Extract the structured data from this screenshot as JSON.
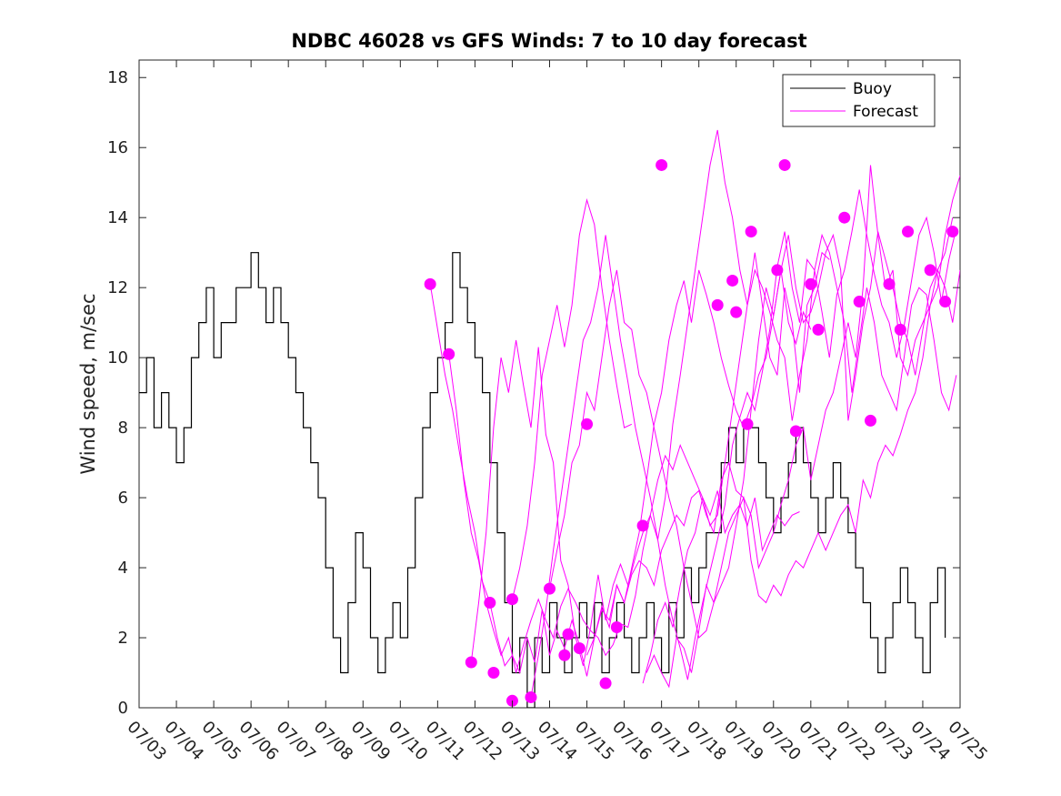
{
  "chart_data": {
    "type": "line",
    "title": "NDBC 46028 vs GFS Winds: 7 to 10 day forecast",
    "xlabel": "",
    "ylabel": "Wind speed, m/sec",
    "xlim": [
      0,
      22
    ],
    "ylim": [
      0,
      18.5
    ],
    "x_tick_labels": [
      "07/03",
      "07/04",
      "07/05",
      "07/06",
      "07/07",
      "07/08",
      "07/09",
      "07/10",
      "07/11",
      "07/12",
      "07/13",
      "07/14",
      "07/15",
      "07/16",
      "07/17",
      "07/18",
      "07/19",
      "07/20",
      "07/21",
      "07/22",
      "07/23",
      "07/24",
      "07/25"
    ],
    "y_tick_labels": [
      "0",
      "2",
      "4",
      "6",
      "8",
      "10",
      "12",
      "14",
      "16",
      "18"
    ],
    "y_ticks": [
      0,
      2,
      4,
      6,
      8,
      10,
      12,
      14,
      16,
      18
    ],
    "x_units": "days since 07/03",
    "legend": {
      "placement": "top-right",
      "entries": [
        "Buoy",
        "Forecast"
      ]
    },
    "colors": {
      "buoy": "#000000",
      "forecast": "#ff00ff"
    },
    "buoy": {
      "name": "Buoy",
      "x": [
        0.0,
        0.2,
        0.4,
        0.6,
        0.8,
        1.0,
        1.2,
        1.4,
        1.6,
        1.8,
        2.0,
        2.2,
        2.4,
        2.6,
        2.8,
        3.0,
        3.2,
        3.4,
        3.6,
        3.8,
        4.0,
        4.2,
        4.4,
        4.6,
        4.8,
        5.0,
        5.2,
        5.4,
        5.6,
        5.8,
        6.0,
        6.2,
        6.4,
        6.6,
        6.8,
        7.0,
        7.2,
        7.4,
        7.6,
        7.8,
        8.0,
        8.2,
        8.4,
        8.6,
        8.8,
        9.0,
        9.2,
        9.4,
        9.6,
        9.8,
        10.0,
        10.2,
        10.4,
        10.6,
        10.8,
        11.0,
        11.2,
        11.4,
        11.6,
        11.8,
        12.0,
        12.2,
        12.4,
        12.6,
        12.8,
        13.0,
        13.2,
        13.4,
        13.6,
        13.8,
        14.0,
        14.2,
        14.4,
        14.6,
        14.8,
        15.0,
        15.2,
        15.4,
        15.6,
        15.8,
        16.0,
        16.2,
        16.4,
        16.6,
        16.8,
        17.0,
        17.2,
        17.4,
        17.6,
        17.8,
        18.0,
        18.2,
        18.4,
        18.6,
        18.8,
        19.0,
        19.2,
        19.4,
        19.6,
        19.8,
        20.0,
        20.2,
        20.4,
        20.6,
        20.8,
        21.0,
        21.2,
        21.4,
        21.6
      ],
      "y": [
        9,
        10,
        8,
        9,
        8,
        7,
        8,
        10,
        11,
        12,
        10,
        11,
        11,
        12,
        12,
        13,
        12,
        11,
        12,
        11,
        10,
        9,
        8,
        7,
        6,
        4,
        2,
        1,
        3,
        5,
        4,
        2,
        1,
        2,
        3,
        2,
        4,
        6,
        8,
        9,
        10,
        11,
        13,
        12,
        11,
        10,
        9,
        7,
        5,
        3,
        1,
        2,
        0,
        2,
        1,
        3,
        2,
        1,
        2,
        3,
        2,
        3,
        1,
        2,
        3,
        2,
        1,
        2,
        3,
        2,
        1,
        3,
        2,
        4,
        3,
        4,
        5,
        5,
        7,
        8,
        7,
        8,
        8,
        7,
        6,
        5,
        6,
        7,
        8,
        7,
        6,
        5,
        6,
        7,
        6,
        5,
        4,
        3,
        2,
        1,
        2,
        3,
        4,
        3,
        2,
        1,
        3,
        4,
        2
      ]
    },
    "forecast_series": [
      {
        "x": [
          7.8,
          8.0,
          8.2,
          8.4,
          8.6,
          8.8,
          9.0,
          9.2,
          9.4,
          9.6,
          9.8,
          10.0,
          10.2,
          10.4,
          10.6,
          10.8,
          11.0,
          11.2,
          11.4,
          11.6,
          11.8,
          12.0,
          12.2,
          12.4,
          12.6,
          12.8,
          13.0,
          13.2,
          13.4,
          13.6,
          13.8,
          14.0,
          14.2,
          14.4,
          14.6,
          14.8,
          15.0,
          15.2,
          15.4,
          15.6,
          15.8,
          16.0,
          16.2,
          16.4,
          16.6,
          16.8,
          17.0,
          17.2,
          17.4,
          17.6,
          17.8,
          18.0
        ],
        "y": [
          12.1,
          10.8,
          9.5,
          8.5,
          7.2,
          6.0,
          5.0,
          3.6,
          3.0,
          2.0,
          1.2,
          1.5,
          1.0,
          2.0,
          1.3,
          2.8,
          1.5,
          2.2,
          1.7,
          2.5,
          1.8,
          0.9,
          2.0,
          2.9,
          2.3,
          3.5,
          3.0,
          4.0,
          5.0,
          6.5,
          8.1,
          9.0,
          10.5,
          11.5,
          12.2,
          11.0,
          12.5,
          11.8,
          11.0,
          10.0,
          9.2,
          8.5,
          8.0,
          8.6,
          9.5,
          10.0,
          11.2,
          12.5,
          11.0,
          10.4,
          11.3,
          10.8
        ]
      },
      {
        "x": [
          8.3,
          8.5,
          8.7,
          8.9,
          9.1,
          9.3,
          9.5,
          9.7,
          9.9,
          10.1,
          10.3,
          10.5,
          10.7,
          10.9,
          11.1,
          11.3,
          11.5,
          11.7,
          11.9,
          12.1,
          12.3,
          12.5,
          12.7,
          12.9,
          13.1,
          13.3,
          13.5,
          13.7,
          13.9,
          14.1,
          14.3,
          14.5,
          14.7,
          14.9,
          15.1,
          15.3,
          15.5,
          15.7,
          15.9,
          16.1,
          16.3,
          16.5,
          16.7,
          16.9,
          17.1,
          17.3,
          17.5,
          17.7
        ],
        "y": [
          10.1,
          8.5,
          6.5,
          5.0,
          4.2,
          3.0,
          2.2,
          1.5,
          2.0,
          1.0,
          1.8,
          2.5,
          3.1,
          2.5,
          2.0,
          2.9,
          3.4,
          3.0,
          2.5,
          2.2,
          2.0,
          1.5,
          1.8,
          2.4,
          2.3,
          3.2,
          4.5,
          5.5,
          6.5,
          7.2,
          6.8,
          7.5,
          7.0,
          6.5,
          6.0,
          5.5,
          6.2,
          5.0,
          5.5,
          5.8,
          5.2,
          6.0,
          4.5,
          5.0,
          5.5,
          5.2,
          5.5,
          5.6
        ]
      },
      {
        "x": [
          8.9,
          9.1,
          9.3,
          9.5,
          9.7,
          9.9,
          10.1,
          10.3,
          10.5,
          10.7,
          10.9,
          11.1,
          11.3,
          11.5,
          11.7,
          11.9,
          12.1,
          12.3,
          12.5,
          12.7,
          12.9,
          13.1,
          13.3,
          13.5,
          13.7,
          13.9,
          14.1,
          14.3,
          14.5,
          14.7,
          14.9,
          15.1,
          15.3,
          15.5,
          15.7,
          15.9,
          16.1,
          16.3,
          16.5,
          16.7,
          16.9,
          17.1,
          17.3,
          17.5,
          17.7,
          17.9,
          18.1,
          18.3,
          18.5
        ],
        "y": [
          1.3,
          3.0,
          5.0,
          8.0,
          10.0,
          9.0,
          10.5,
          9.2,
          8.0,
          10.3,
          7.8,
          7.0,
          4.2,
          3.5,
          2.0,
          1.2,
          2.3,
          3.8,
          2.5,
          3.5,
          4.1,
          3.5,
          4.3,
          5.0,
          5.5,
          4.8,
          6.0,
          8.1,
          9.5,
          11.0,
          12.5,
          14.0,
          15.5,
          16.5,
          15.0,
          14.0,
          12.5,
          11.5,
          13.0,
          11.5,
          10.0,
          9.5,
          12.0,
          11.0,
          9.0,
          11.5,
          12.0,
          13.0,
          12.8
        ]
      },
      {
        "x": [
          10.0,
          10.2,
          10.4,
          10.6,
          10.8,
          11.0,
          11.2,
          11.4,
          11.6,
          11.8,
          12.0,
          12.2,
          12.4,
          12.6,
          12.8,
          13.0,
          13.2,
          13.4,
          13.6,
          13.8,
          14.0,
          14.2,
          14.4,
          14.6,
          14.8,
          15.0,
          15.2,
          15.4,
          15.6,
          15.8,
          16.0,
          16.2,
          16.4,
          16.6,
          16.8,
          17.0,
          17.2,
          17.4,
          17.6,
          17.8,
          18.0,
          18.2,
          18.4,
          18.6,
          18.8,
          19.0,
          19.2,
          19.4,
          19.6,
          19.8,
          20.0,
          20.2,
          20.4,
          20.6,
          20.8,
          21.0,
          21.2,
          21.4,
          21.6,
          21.8,
          22.0
        ],
        "y": [
          3.1,
          4.0,
          5.2,
          7.0,
          9.5,
          10.5,
          11.5,
          10.3,
          11.5,
          13.5,
          14.5,
          13.8,
          12.0,
          10.5,
          9.2,
          8.0,
          8.1,
          null,
          1.0,
          1.5,
          1.0,
          0.6,
          2.0,
          1.7,
          1.0,
          2.2,
          3.5,
          3.0,
          4.0,
          5.0,
          5.5,
          6.0,
          4.2,
          3.2,
          3.0,
          3.5,
          3.2,
          3.8,
          4.2,
          4.0,
          4.5,
          5.0,
          4.5,
          5.0,
          5.5,
          5.8,
          5.0,
          6.5,
          6.0,
          7.0,
          7.5,
          7.2,
          7.8,
          8.5,
          9.0,
          10.0,
          11.5,
          12.0,
          13.5,
          14.5,
          15.2
        ]
      },
      {
        "x": [
          10.5,
          10.7,
          10.9,
          11.1,
          11.3,
          11.5,
          11.7,
          11.9,
          12.1,
          12.3,
          12.5,
          12.7,
          12.9,
          13.1,
          13.3,
          13.5,
          13.7,
          13.9,
          14.1,
          14.3,
          14.5,
          14.7,
          14.9,
          15.1,
          15.3,
          15.5,
          15.7,
          15.9,
          16.1,
          16.3,
          16.5,
          16.7,
          16.9,
          17.1,
          17.3,
          17.5,
          17.7,
          17.9,
          18.1,
          18.3,
          18.5,
          18.7,
          18.9,
          19.1,
          19.3,
          19.5,
          19.7,
          19.9,
          20.1,
          20.3,
          20.5,
          20.7,
          20.9,
          21.1,
          21.3,
          21.5,
          21.7,
          21.9
        ],
        "y": [
          0.3,
          1.5,
          2.8,
          4.5,
          6.0,
          7.5,
          9.0,
          10.5,
          11.0,
          12.0,
          13.5,
          12.0,
          10.5,
          9.3,
          8.0,
          7.0,
          6.0,
          4.8,
          3.5,
          2.5,
          1.7,
          0.8,
          2.0,
          3.0,
          3.9,
          4.8,
          5.8,
          7.5,
          8.3,
          9.0,
          8.5,
          9.6,
          10.8,
          12.6,
          13.6,
          12.0,
          11.0,
          12.8,
          12.5,
          11.3,
          10.0,
          11.8,
          12.5,
          13.6,
          14.8,
          13.5,
          12.4,
          11.5,
          11.0,
          10.0,
          10.9,
          12.2,
          13.5,
          14.0,
          13.0,
          11.6,
          12.8,
          13.7
        ]
      },
      {
        "x": [
          11.0,
          11.2,
          11.4,
          11.6,
          11.8,
          12.0,
          12.2,
          12.4,
          12.6,
          12.8,
          13.0,
          13.2,
          13.4,
          13.6,
          13.8,
          14.0,
          14.2,
          14.4,
          14.6,
          14.8,
          15.0,
          15.2,
          15.4,
          15.6,
          15.8,
          16.0,
          16.2,
          16.4,
          16.6,
          16.8,
          17.0,
          17.2,
          17.4,
          17.6,
          17.8,
          18.0,
          18.2,
          18.4,
          18.6,
          18.8,
          19.0,
          19.2,
          19.4,
          19.6,
          19.8,
          20.0,
          20.2,
          20.4,
          20.6,
          20.8,
          21.0,
          21.2,
          21.4,
          21.6,
          21.8
        ],
        "y": [
          3.4,
          4.5,
          5.5,
          7.0,
          7.5,
          9.0,
          8.5,
          10.0,
          11.5,
          12.5,
          11.0,
          10.8,
          9.5,
          9.0,
          8.0,
          7.0,
          6.0,
          5.2,
          4.0,
          3.0,
          2.0,
          2.2,
          3.0,
          3.5,
          4.0,
          5.2,
          6.5,
          8.5,
          10.5,
          12.0,
          11.2,
          12.5,
          13.5,
          12.0,
          11.0,
          11.3,
          12.0,
          13.0,
          13.5,
          12.5,
          8.2,
          9.5,
          11.0,
          12.0,
          13.6,
          12.8,
          12.0,
          11.0,
          10.5,
          9.5,
          10.8,
          12.0,
          12.5,
          13.0,
          14.0
        ]
      },
      {
        "x": [
          13.5,
          13.7,
          13.9,
          14.1,
          14.3,
          14.5,
          14.7,
          14.9,
          15.1,
          15.3,
          15.5,
          15.7,
          15.9,
          16.1,
          16.3,
          16.5,
          16.7,
          16.9,
          17.1,
          17.3,
          17.5,
          17.7,
          17.9,
          18.1,
          18.3,
          18.5,
          18.7,
          18.9,
          19.1,
          19.3,
          19.5,
          19.7,
          19.9,
          20.1,
          20.3,
          20.5,
          20.7,
          20.9,
          21.1,
          21.3,
          21.5,
          21.7,
          21.9
        ],
        "y": [
          0.7,
          1.5,
          2.5,
          3.0,
          2.3,
          3.5,
          4.5,
          5.0,
          6.0,
          5.2,
          5.5,
          7.0,
          8.5,
          10.0,
          11.5,
          12.5,
          12.0,
          11.3,
          10.5,
          10.0,
          8.2,
          9.5,
          10.5,
          12.5,
          13.5,
          13.0,
          12.0,
          11.0,
          9.0,
          10.5,
          12.0,
          11.0,
          9.5,
          9.0,
          8.5,
          10.0,
          11.5,
          12.0,
          11.8,
          10.5,
          9.0,
          8.5,
          9.5
        ]
      },
      {
        "x": [
          12.0,
          12.2,
          12.4,
          12.6,
          12.8,
          13.0,
          13.2,
          13.4,
          13.6,
          13.8,
          14.0,
          14.2,
          14.4,
          14.6,
          14.8,
          15.0,
          15.2,
          15.4,
          15.6,
          15.8,
          16.0,
          16.2,
          16.4,
          16.6,
          16.8,
          17.0,
          17.2,
          17.4,
          17.6,
          17.8,
          18.0,
          18.2,
          18.4,
          18.6,
          18.8,
          19.0,
          19.2,
          19.4,
          19.6,
          19.8,
          20.0,
          20.2,
          20.4,
          20.6,
          20.8,
          21.0,
          21.2,
          21.4,
          21.6,
          21.8,
          22.0
        ],
        "y": [
          1.5,
          2.0,
          2.8,
          2.5,
          3.5,
          3.0,
          3.8,
          4.2,
          4.0,
          3.5,
          4.5,
          5.0,
          5.5,
          5.2,
          6.0,
          6.2,
          5.5,
          5.0,
          6.5,
          7.0,
          6.2,
          6.0,
          5.5,
          4.0,
          4.5,
          5.0,
          5.8,
          6.5,
          7.5,
          8.0,
          6.5,
          7.5,
          8.5,
          9.0,
          10.0,
          11.0,
          10.0,
          12.0,
          15.5,
          13.5,
          12.0,
          12.5,
          10.0,
          9.5,
          10.5,
          11.0,
          11.5,
          12.5,
          12.0,
          11.0,
          12.5
        ]
      }
    ],
    "forecast_markers": {
      "x": [
        7.8,
        8.3,
        8.9,
        9.4,
        9.5,
        10.0,
        10.0,
        10.5,
        11.0,
        11.4,
        11.5,
        11.8,
        12.0,
        12.5,
        12.8,
        13.5,
        14.0,
        15.5,
        15.9,
        16.0,
        16.3,
        16.4,
        17.1,
        17.3,
        17.6,
        18.0,
        18.2,
        18.9,
        19.3,
        19.6,
        20.1,
        20.4,
        20.6,
        21.2,
        21.6,
        21.8
      ],
      "y": [
        12.1,
        10.1,
        1.3,
        3.0,
        1.0,
        3.1,
        0.2,
        0.3,
        3.4,
        1.5,
        2.1,
        1.7,
        8.1,
        0.7,
        2.3,
        5.2,
        15.5,
        11.5,
        12.2,
        11.3,
        8.1,
        13.6,
        12.5,
        15.5,
        7.9,
        12.1,
        10.8,
        14.0,
        11.6,
        8.2,
        12.1,
        10.8,
        13.6,
        12.5,
        11.6,
        13.6
      ]
    }
  }
}
